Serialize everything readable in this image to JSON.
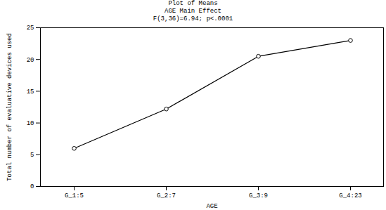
{
  "chart_data": {
    "type": "line",
    "title": "Plot of Means",
    "subtitle": "AGE Main Effect",
    "annotations": [
      "F(3,36)=6.94; p<.0001"
    ],
    "x_label": "AGE",
    "y_label": "Total number of evaluative devices used",
    "categories": [
      "G_1:5",
      "G_2:7",
      "G_3:9",
      "G_4:23"
    ],
    "values": [
      6,
      12.2,
      20.5,
      23
    ],
    "color": "#000000",
    "marker": "circle",
    "line_style": "solid",
    "ylim": [
      0,
      25
    ],
    "yticks": [
      0,
      5,
      10,
      15,
      20,
      25
    ],
    "grid": false
  }
}
